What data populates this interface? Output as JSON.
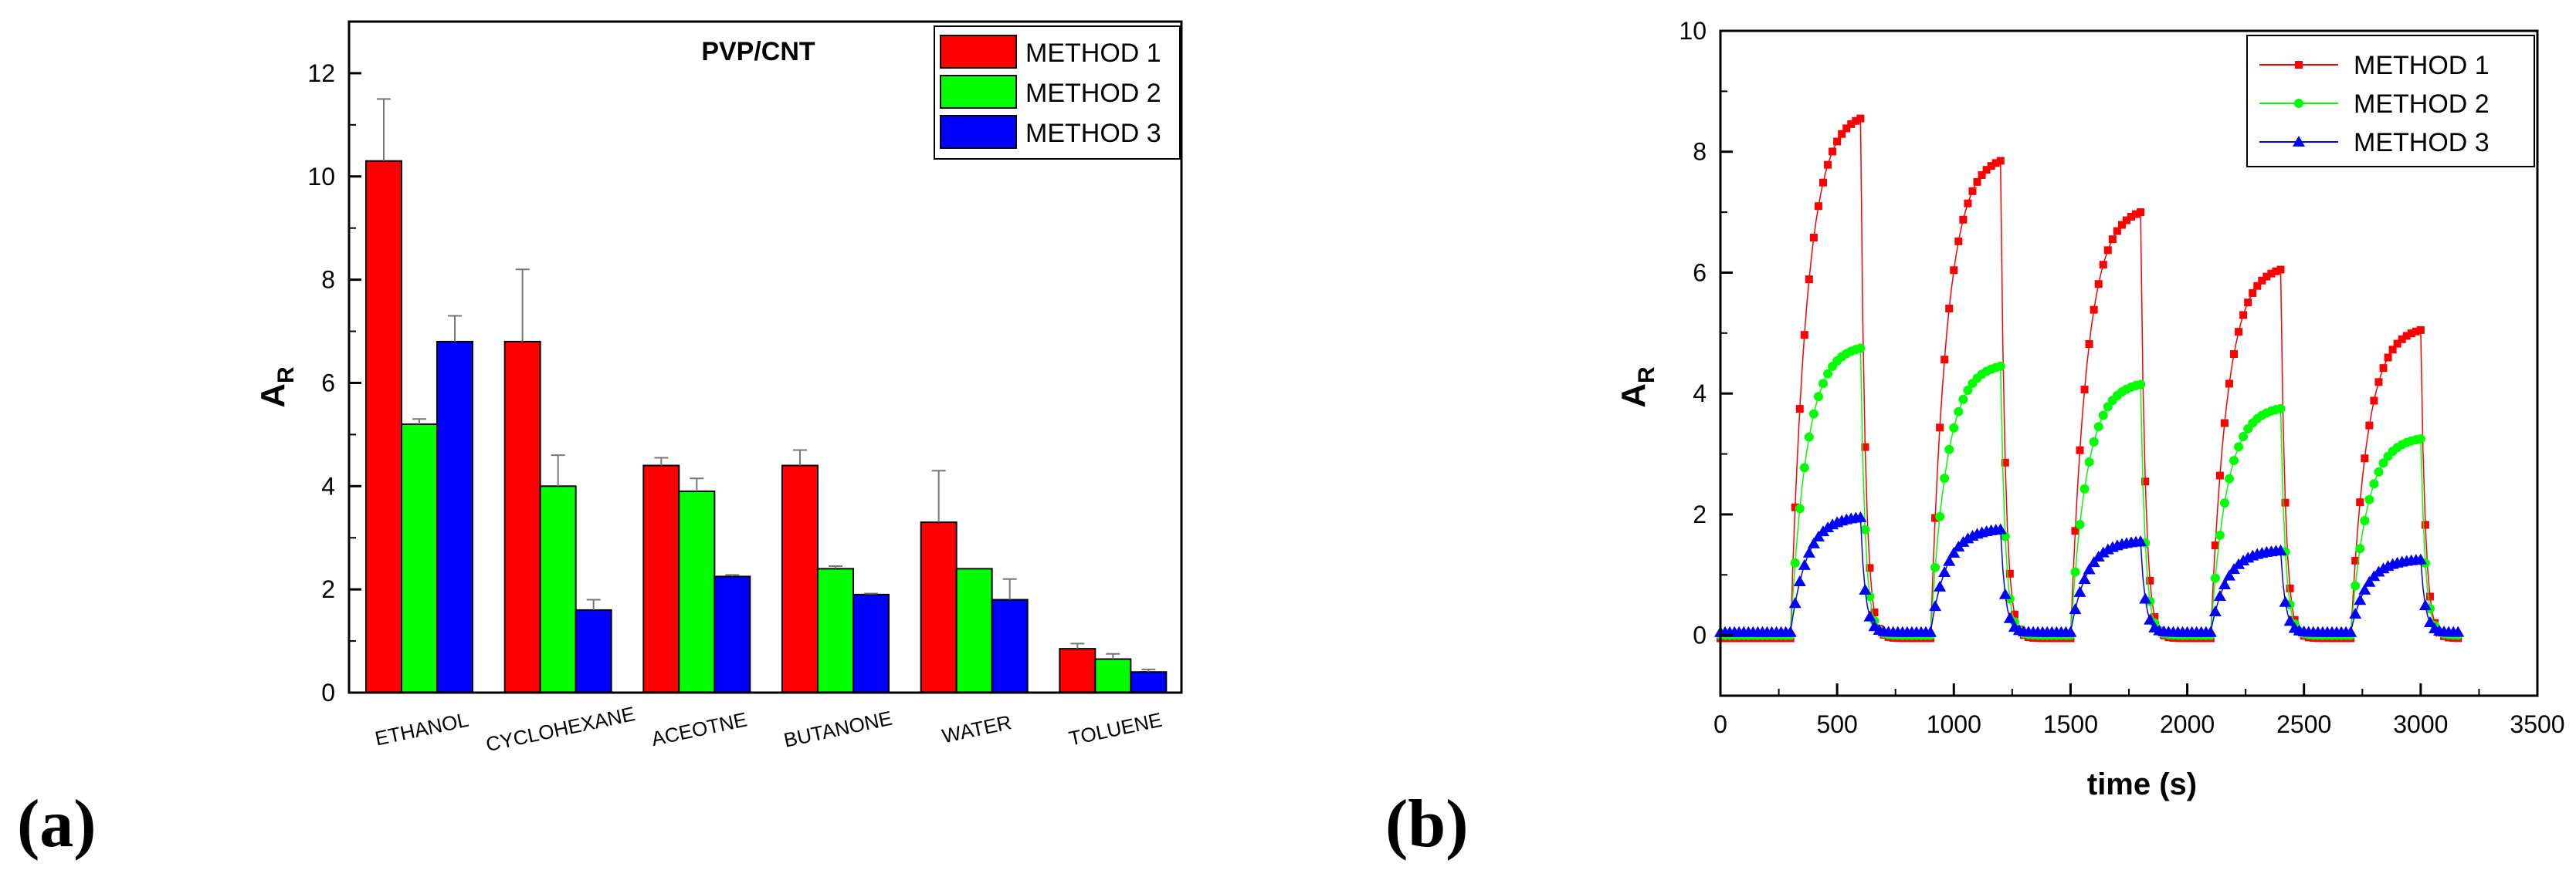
{
  "panels": {
    "a": "(a)",
    "b": "(b)"
  },
  "colors": {
    "method1": "#ff0000",
    "method2": "#00ff00",
    "method3": "#0000ff",
    "axis": "#000000",
    "errorbar": "#777777"
  },
  "chart_data": [
    {
      "type": "bar",
      "panel": "(a)",
      "title": "PVP/CNT",
      "xlabel": "",
      "ylabel": "A",
      "ylabel_sub": "R",
      "categories": [
        "ETHANOL",
        "CYCLOHEXANE",
        "ACEOTNE",
        "BUTANONE",
        "WATER",
        "TOLUENE"
      ],
      "series": [
        {
          "name": "METHOD 1",
          "color": "#ff0000",
          "values": [
            10.3,
            6.8,
            4.4,
            4.4,
            3.3,
            0.85
          ],
          "errors": [
            1.2,
            1.4,
            0.15,
            0.3,
            1.0,
            0.1
          ]
        },
        {
          "name": "METHOD 2",
          "color": "#00ff00",
          "values": [
            5.2,
            4.0,
            3.9,
            2.4,
            2.4,
            0.65
          ],
          "errors": [
            0.1,
            0.6,
            0.25,
            0.05,
            0.0,
            0.1
          ]
        },
        {
          "name": "METHOD 3",
          "color": "#0000ff",
          "values": [
            6.8,
            1.6,
            2.25,
            1.9,
            1.8,
            0.4
          ],
          "errors": [
            0.5,
            0.2,
            0.03,
            0.02,
            0.4,
            0.05
          ]
        }
      ],
      "ylim": [
        0,
        13
      ],
      "yticks": [
        "0",
        "2",
        "4",
        "6",
        "8",
        "10",
        "12"
      ],
      "legend": "top-right"
    },
    {
      "type": "scatter",
      "panel": "(b)",
      "title": "",
      "xlabel": "time (s)",
      "ylabel": "A",
      "ylabel_sub": "R",
      "xlim": [
        0,
        3500
      ],
      "ylim": [
        -1,
        10
      ],
      "xticks": [
        "0",
        "500",
        "1000",
        "1500",
        "2000",
        "2500",
        "3000",
        "3500"
      ],
      "yticks": [
        "0",
        "2",
        "4",
        "6",
        "8",
        "10"
      ],
      "cycles": [
        {
          "on_start": 300,
          "off_start": 600
        },
        {
          "on_start": 900,
          "off_start": 1200
        },
        {
          "on_start": 1500,
          "off_start": 1800
        },
        {
          "on_start": 2100,
          "off_start": 2400
        },
        {
          "on_start": 2700,
          "off_start": 3000
        }
      ],
      "end_time": 3170,
      "series": [
        {
          "name": "METHOD 1",
          "color": "#ff0000",
          "marker": "square",
          "baseline": -0.05,
          "peaks": [
            8.55,
            7.85,
            7.0,
            6.05,
            5.05
          ]
        },
        {
          "name": "METHOD 2",
          "color": "#00ff00",
          "marker": "circle",
          "baseline": 0.0,
          "peaks": [
            4.75,
            4.45,
            4.15,
            3.75,
            3.25
          ]
        },
        {
          "name": "METHOD 3",
          "color": "#0000ff",
          "marker": "triangle",
          "baseline": 0.05,
          "peaks": [
            1.95,
            1.75,
            1.55,
            1.4,
            1.25
          ]
        }
      ],
      "legend": "top-right"
    }
  ]
}
